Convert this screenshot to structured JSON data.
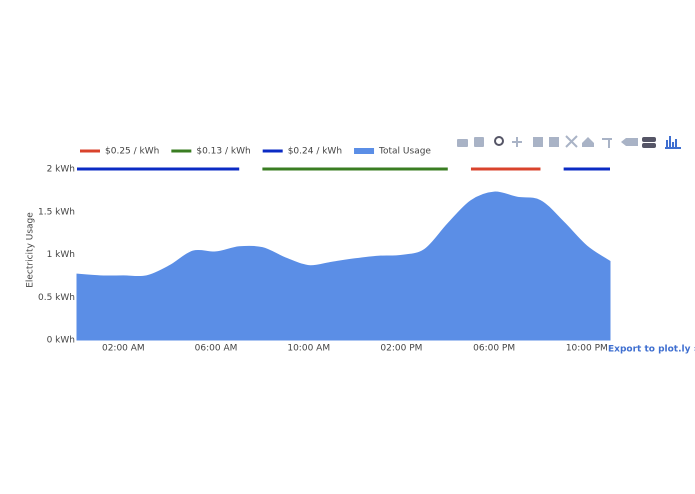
{
  "chart_data": {
    "type": "area",
    "y_label": "Electricity Usage",
    "export_link": "Export to plot.ly »",
    "x": [
      0,
      1,
      2,
      3,
      4,
      5,
      6,
      7,
      8,
      9,
      10,
      11,
      12,
      13,
      14,
      15,
      16,
      17,
      18,
      19,
      20,
      21,
      22,
      23
    ],
    "xlim": [
      0,
      23
    ],
    "xticks": [
      {
        "value": 2,
        "label": "02:00 AM"
      },
      {
        "value": 6,
        "label": "06:00 AM"
      },
      {
        "value": 10,
        "label": "10:00 AM"
      },
      {
        "value": 14,
        "label": "02:00 PM"
      },
      {
        "value": 18,
        "label": "06:00 PM"
      },
      {
        "value": 22,
        "label": "10:00 PM"
      }
    ],
    "ylim": [
      0,
      2
    ],
    "yticks": [
      {
        "value": 0,
        "label": "0 kWh"
      },
      {
        "value": 0.5,
        "label": "0.5 kWh"
      },
      {
        "value": 1,
        "label": "1 kWh"
      },
      {
        "value": 1.5,
        "label": "1.5 kWh"
      },
      {
        "value": 2,
        "label": "2 kWh"
      }
    ],
    "series": [
      {
        "name": "$0.25 / kWh",
        "color": "#d9432c",
        "kind": "line",
        "x": [
          17,
          20
        ],
        "values": [
          2,
          2
        ]
      },
      {
        "name": "$0.13 / kWh",
        "color": "#3a7d22",
        "kind": "line",
        "x": [
          8,
          16
        ],
        "values": [
          2,
          2
        ]
      },
      {
        "name": "$0.24 / kWh",
        "color": "#0b2bc4",
        "kind": "line",
        "x": [
          0,
          7,
          null,
          21,
          23
        ],
        "values": [
          2,
          2,
          null,
          2,
          2
        ]
      },
      {
        "name": "Total Usage",
        "color": "#5b8ee6",
        "kind": "area",
        "x": [
          0,
          1,
          2,
          3,
          4,
          5,
          6,
          7,
          8,
          9,
          10,
          11,
          12,
          13,
          14,
          15,
          16,
          17,
          18,
          19,
          20,
          21,
          22,
          23
        ],
        "values": [
          0.77,
          0.75,
          0.75,
          0.75,
          0.87,
          1.04,
          1.03,
          1.09,
          1.08,
          0.96,
          0.87,
          0.91,
          0.95,
          0.98,
          0.99,
          1.06,
          1.36,
          1.63,
          1.73,
          1.67,
          1.63,
          1.38,
          1.1,
          0.92
        ]
      }
    ]
  }
}
